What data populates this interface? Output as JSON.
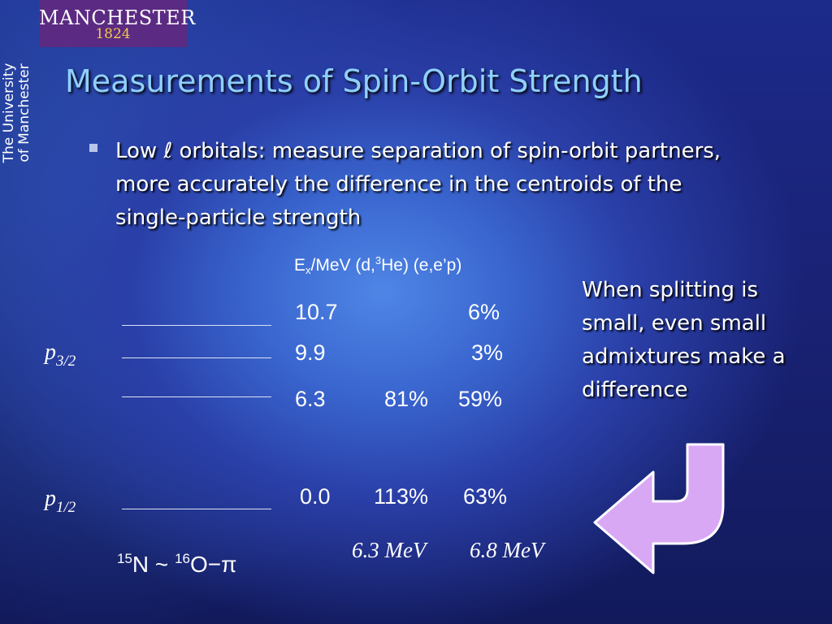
{
  "logo": {
    "name": "MANCHESTER",
    "year": "1824"
  },
  "university_label": [
    "The University",
    "of Manchester"
  ],
  "title": "Measurements of Spin-Orbit Strength",
  "bullet": "Low ℓ orbitals: measure separation of spin-orbit partners, more accurately the difference in the centroids of the single-particle strength",
  "table": {
    "header": {
      "ex": "E",
      "ex_sub": "x",
      "unit": "/MeV  (d,",
      "he_sup": "3",
      "he": "He) (e,e’p)"
    },
    "rows": [
      {
        "energy": "10.7",
        "dhe": "",
        "eep": "6%"
      },
      {
        "energy": "9.9",
        "dhe": "",
        "eep": "3%"
      },
      {
        "energy": "6.3",
        "dhe": "81%",
        "eep": "59%"
      },
      {
        "energy": "0.0",
        "dhe": "113%",
        "eep": "63%"
      }
    ]
  },
  "orbitals": [
    {
      "letter": "p",
      "sub": "3/2"
    },
    {
      "letter": "p",
      "sub": "1/2"
    }
  ],
  "centroids": {
    "dhe": "6.3 MeV",
    "eep": "6.8 MeV"
  },
  "nuclide": {
    "n_mass": "15",
    "n": "N",
    "approx": " ~ ",
    "o_mass": "16",
    "o": "O−π"
  },
  "note": "When splitting is small, even small admixtures make a difference",
  "colors": {
    "title": "#8fd0ff",
    "logo_bg": "#5b2a82",
    "logo_year": "#f2c94c",
    "arrow_fill": "#d9a8f5"
  },
  "icons": {
    "arrow": "curved-arrow-icon"
  }
}
